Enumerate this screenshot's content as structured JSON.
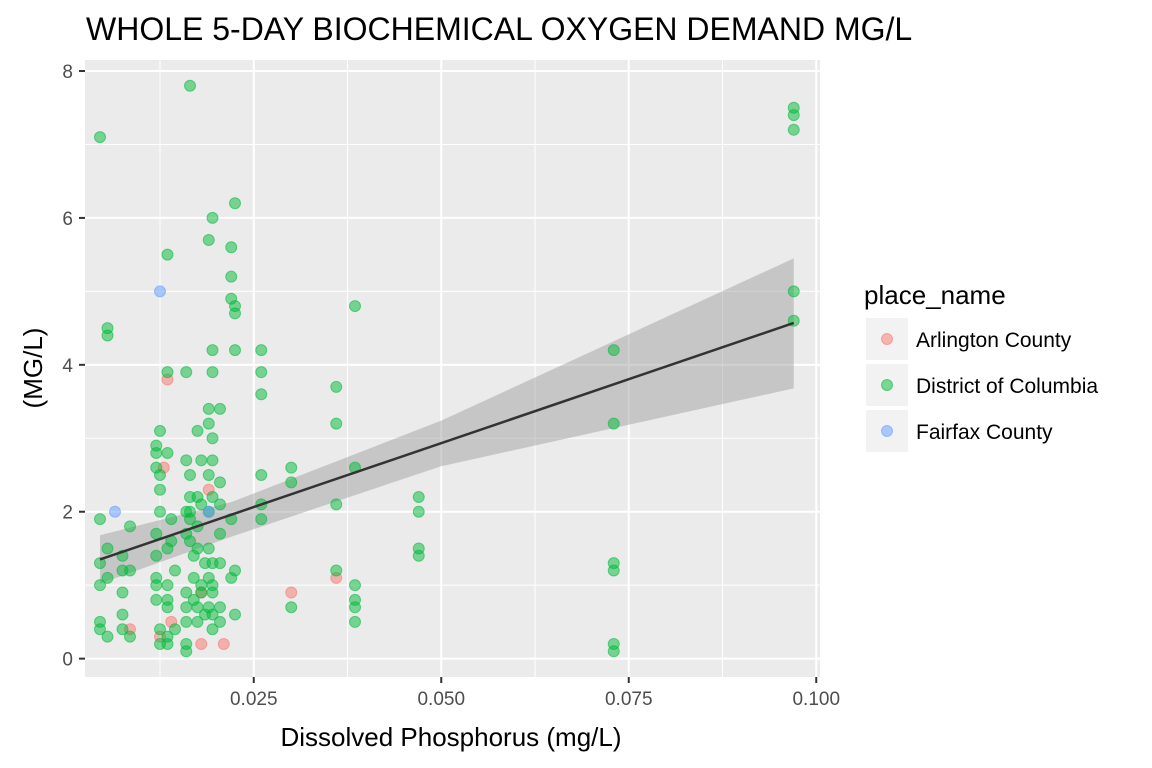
{
  "chart_data": {
    "type": "scatter",
    "title": "WHOLE 5-DAY BIOCHEMICAL OXYGEN DEMAND MG/L",
    "xlabel": "Dissolved Phosphorus (mg/L)",
    "ylabel": "(MG/L)",
    "xlim": [
      0.0025,
      0.1005
    ],
    "ylim": [
      -0.25,
      8.15
    ],
    "x_ticks": [
      0.025,
      0.05,
      0.075,
      0.1
    ],
    "x_tick_labels": [
      "0.025",
      "0.050",
      "0.075",
      "0.100"
    ],
    "y_ticks": [
      0,
      2,
      4,
      6,
      8
    ],
    "y_tick_labels": [
      "0",
      "2",
      "4",
      "6",
      "8"
    ],
    "grid": true,
    "legend": {
      "title": "place_name",
      "position": "right"
    },
    "series": [
      {
        "name": "Arlington County",
        "color": "#F8766D",
        "points": [
          [
            0.013,
            2.6
          ],
          [
            0.0135,
            3.8
          ],
          [
            0.019,
            2.3
          ],
          [
            0.0085,
            0.4
          ],
          [
            0.014,
            0.5
          ],
          [
            0.018,
            0.9
          ],
          [
            0.021,
            0.2
          ],
          [
            0.018,
            0.2
          ],
          [
            0.03,
            0.9
          ],
          [
            0.036,
            1.1
          ],
          [
            0.0125,
            0.3
          ]
        ]
      },
      {
        "name": "District of Columbia",
        "color": "#00BA38",
        "points": [
          [
            0.0045,
            7.1
          ],
          [
            0.0165,
            7.8
          ],
          [
            0.0045,
            1.9
          ],
          [
            0.0045,
            1.3
          ],
          [
            0.0045,
            1.0
          ],
          [
            0.0045,
            0.5
          ],
          [
            0.0045,
            0.4
          ],
          [
            0.0055,
            4.5
          ],
          [
            0.0055,
            4.4
          ],
          [
            0.0055,
            1.5
          ],
          [
            0.0055,
            1.1
          ],
          [
            0.0055,
            0.3
          ],
          [
            0.0075,
            1.4
          ],
          [
            0.0075,
            1.2
          ],
          [
            0.0075,
            0.9
          ],
          [
            0.0075,
            0.6
          ],
          [
            0.0075,
            0.4
          ],
          [
            0.0085,
            1.8
          ],
          [
            0.0085,
            1.2
          ],
          [
            0.0085,
            0.3
          ],
          [
            0.012,
            2.9
          ],
          [
            0.012,
            2.8
          ],
          [
            0.012,
            2.6
          ],
          [
            0.012,
            1.7
          ],
          [
            0.012,
            1.4
          ],
          [
            0.012,
            1.1
          ],
          [
            0.012,
            1.0
          ],
          [
            0.012,
            0.8
          ],
          [
            0.0125,
            3.1
          ],
          [
            0.0125,
            2.5
          ],
          [
            0.0125,
            2.3
          ],
          [
            0.0125,
            2.0
          ],
          [
            0.0125,
            0.4
          ],
          [
            0.0125,
            0.2
          ],
          [
            0.0135,
            5.5
          ],
          [
            0.0135,
            3.9
          ],
          [
            0.0135,
            2.8
          ],
          [
            0.0135,
            1.5
          ],
          [
            0.0135,
            1.0
          ],
          [
            0.0135,
            0.8
          ],
          [
            0.0135,
            0.7
          ],
          [
            0.0135,
            0.3
          ],
          [
            0.0135,
            0.2
          ],
          [
            0.014,
            1.9
          ],
          [
            0.014,
            1.6
          ],
          [
            0.0145,
            1.2
          ],
          [
            0.0145,
            0.4
          ],
          [
            0.016,
            3.9
          ],
          [
            0.016,
            2.7
          ],
          [
            0.016,
            2.0
          ],
          [
            0.016,
            1.7
          ],
          [
            0.016,
            0.9
          ],
          [
            0.016,
            0.7
          ],
          [
            0.016,
            0.5
          ],
          [
            0.016,
            0.2
          ],
          [
            0.016,
            0.1
          ],
          [
            0.0165,
            2.5
          ],
          [
            0.0165,
            2.2
          ],
          [
            0.0165,
            2.0
          ],
          [
            0.0165,
            1.9
          ],
          [
            0.0165,
            1.6
          ],
          [
            0.017,
            1.4
          ],
          [
            0.017,
            1.1
          ],
          [
            0.017,
            0.8
          ],
          [
            0.0175,
            3.1
          ],
          [
            0.0175,
            2.2
          ],
          [
            0.0175,
            1.8
          ],
          [
            0.0175,
            1.5
          ],
          [
            0.0175,
            0.7
          ],
          [
            0.0175,
            0.5
          ],
          [
            0.018,
            2.7
          ],
          [
            0.018,
            2.1
          ],
          [
            0.018,
            1.0
          ],
          [
            0.018,
            0.9
          ],
          [
            0.0185,
            1.3
          ],
          [
            0.0185,
            0.6
          ],
          [
            0.019,
            5.7
          ],
          [
            0.019,
            3.4
          ],
          [
            0.019,
            3.2
          ],
          [
            0.019,
            2.5
          ],
          [
            0.019,
            2.0
          ],
          [
            0.019,
            1.5
          ],
          [
            0.019,
            1.1
          ],
          [
            0.019,
            0.7
          ],
          [
            0.0195,
            6.0
          ],
          [
            0.0195,
            4.2
          ],
          [
            0.0195,
            3.9
          ],
          [
            0.0195,
            3.0
          ],
          [
            0.0195,
            2.7
          ],
          [
            0.0195,
            2.2
          ],
          [
            0.0195,
            1.3
          ],
          [
            0.0195,
            1.0
          ],
          [
            0.0195,
            0.9
          ],
          [
            0.0195,
            0.6
          ],
          [
            0.0195,
            0.4
          ],
          [
            0.0205,
            3.4
          ],
          [
            0.0205,
            2.4
          ],
          [
            0.0205,
            2.1
          ],
          [
            0.0205,
            1.7
          ],
          [
            0.0205,
            1.3
          ],
          [
            0.0205,
            0.7
          ],
          [
            0.0205,
            0.5
          ],
          [
            0.022,
            5.6
          ],
          [
            0.022,
            5.2
          ],
          [
            0.022,
            4.9
          ],
          [
            0.022,
            1.9
          ],
          [
            0.022,
            1.1
          ],
          [
            0.0225,
            6.2
          ],
          [
            0.0225,
            4.8
          ],
          [
            0.0225,
            4.7
          ],
          [
            0.0225,
            4.2
          ],
          [
            0.0225,
            1.2
          ],
          [
            0.0225,
            0.6
          ],
          [
            0.026,
            4.2
          ],
          [
            0.026,
            3.9
          ],
          [
            0.026,
            3.6
          ],
          [
            0.026,
            2.5
          ],
          [
            0.026,
            2.1
          ],
          [
            0.026,
            1.9
          ],
          [
            0.03,
            2.6
          ],
          [
            0.03,
            2.4
          ],
          [
            0.03,
            0.7
          ],
          [
            0.036,
            3.7
          ],
          [
            0.036,
            3.2
          ],
          [
            0.036,
            2.1
          ],
          [
            0.036,
            1.2
          ],
          [
            0.0385,
            4.8
          ],
          [
            0.0385,
            2.6
          ],
          [
            0.0385,
            1.0
          ],
          [
            0.0385,
            0.8
          ],
          [
            0.0385,
            0.7
          ],
          [
            0.0385,
            0.5
          ],
          [
            0.047,
            2.2
          ],
          [
            0.047,
            2.0
          ],
          [
            0.047,
            1.5
          ],
          [
            0.047,
            1.4
          ],
          [
            0.073,
            4.2
          ],
          [
            0.073,
            3.2
          ],
          [
            0.073,
            1.3
          ],
          [
            0.073,
            1.2
          ],
          [
            0.073,
            0.2
          ],
          [
            0.073,
            0.1
          ],
          [
            0.097,
            7.5
          ],
          [
            0.097,
            7.4
          ],
          [
            0.097,
            7.2
          ],
          [
            0.097,
            5.0
          ],
          [
            0.097,
            4.6
          ]
        ]
      },
      {
        "name": "Fairfax County",
        "color": "#619CFF",
        "points": [
          [
            0.0125,
            5.0
          ],
          [
            0.0065,
            2.0
          ],
          [
            0.019,
            2.0
          ]
        ]
      }
    ],
    "trend_line": {
      "method": "linear",
      "from": [
        0.0045,
        1.35
      ],
      "to": [
        0.097,
        4.57
      ],
      "color": "#333333"
    },
    "confidence_band": {
      "color": "#999999",
      "upper": [
        [
          0.0045,
          1.68
        ],
        [
          0.022,
          2.13
        ],
        [
          0.05,
          3.24
        ],
        [
          0.097,
          5.45
        ]
      ],
      "lower": [
        [
          0.0045,
          1.02
        ],
        [
          0.022,
          1.66
        ],
        [
          0.05,
          2.62
        ],
        [
          0.097,
          3.68
        ]
      ]
    }
  }
}
